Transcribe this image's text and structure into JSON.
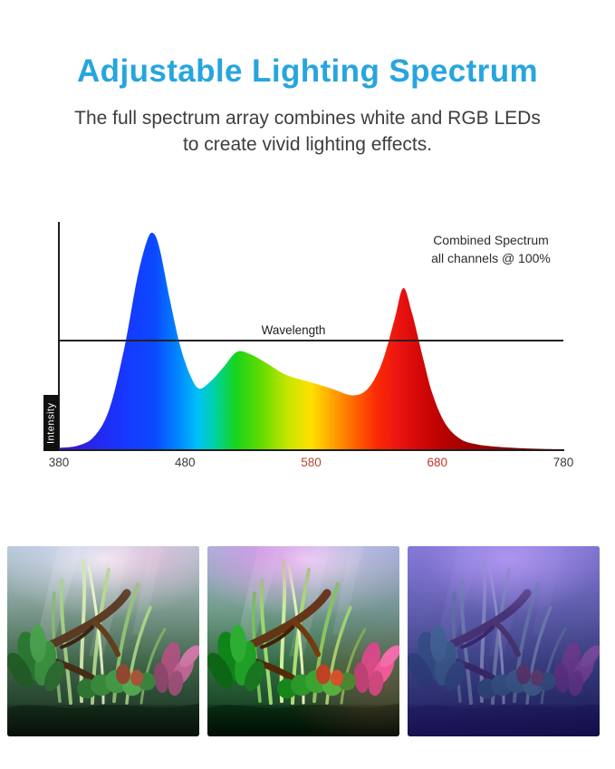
{
  "header": {
    "title": "Adjustable Lighting Spectrum",
    "subtitle_line1": "The full spectrum array combines white and RGB LEDs",
    "subtitle_line2": "to create vivid lighting effects."
  },
  "theme": {
    "accent": "#27a5de",
    "text_dark": "#3d3d3d",
    "axis_color": "#1f1f1f"
  },
  "chart_data": {
    "type": "area",
    "annotation_line1": "Combined Spectrum",
    "annotation_line2": "all channels @ 100%",
    "xlabel": "Wavelength",
    "ylabel": "Intensity",
    "xlim": [
      380,
      780
    ],
    "ylim": [
      0,
      1
    ],
    "grid": false,
    "xlabel_line_intensity": 0.485,
    "x_ticks": [
      {
        "label": "380",
        "color": "#3a3a3a"
      },
      {
        "label": "480",
        "color": "#3a3a3a"
      },
      {
        "label": "580",
        "color": "#b44a30"
      },
      {
        "label": "680",
        "color": "#c43526"
      },
      {
        "label": "780",
        "color": "#3a3a3a"
      }
    ],
    "series": [
      {
        "name": "combined-spectrum-all-channels-100",
        "x": [
          380,
          395,
          408,
          420,
          432,
          442,
          450,
          455,
          460,
          468,
          476,
          484,
          491,
          500,
          510,
          521,
          532,
          545,
          560,
          578,
          596,
          613,
          625,
          636,
          646,
          653,
          660,
          668,
          676,
          686,
          698,
          712,
          735,
          760,
          780
        ],
        "y": [
          0.01,
          0.02,
          0.06,
          0.18,
          0.45,
          0.75,
          0.92,
          0.95,
          0.88,
          0.66,
          0.46,
          0.33,
          0.27,
          0.3,
          0.36,
          0.43,
          0.42,
          0.38,
          0.33,
          0.3,
          0.27,
          0.24,
          0.27,
          0.38,
          0.57,
          0.71,
          0.6,
          0.42,
          0.25,
          0.12,
          0.05,
          0.025,
          0.012,
          0.006,
          0.004
        ]
      }
    ],
    "spectrum_gradient": [
      {
        "offset": 0,
        "color": "#3b16c9"
      },
      {
        "offset": 6,
        "color": "#2a23e8"
      },
      {
        "offset": 12.5,
        "color": "#1836ff"
      },
      {
        "offset": 19,
        "color": "#0b49ff"
      },
      {
        "offset": 24,
        "color": "#008cff"
      },
      {
        "offset": 27.5,
        "color": "#00c0f8"
      },
      {
        "offset": 31,
        "color": "#00d2a0"
      },
      {
        "offset": 35,
        "color": "#16d41c"
      },
      {
        "offset": 40,
        "color": "#62db00"
      },
      {
        "offset": 45.5,
        "color": "#c8e600"
      },
      {
        "offset": 50,
        "color": "#ffe000"
      },
      {
        "offset": 54.5,
        "color": "#ffa000"
      },
      {
        "offset": 59,
        "color": "#ff5f00"
      },
      {
        "offset": 63,
        "color": "#fb2a06"
      },
      {
        "offset": 68,
        "color": "#e81111"
      },
      {
        "offset": 73,
        "color": "#cc0404"
      },
      {
        "offset": 79,
        "color": "#a80000"
      },
      {
        "offset": 87.5,
        "color": "#8d0000"
      },
      {
        "offset": 100,
        "color": "#770000"
      }
    ]
  },
  "photos": [
    {
      "id": "photo-1",
      "description": "aquarium under combined white and RGB light"
    },
    {
      "id": "photo-2",
      "description": "aquarium with vivid magenta and red accents"
    },
    {
      "id": "photo-3",
      "description": "aquarium under blue-violet lighting"
    }
  ]
}
